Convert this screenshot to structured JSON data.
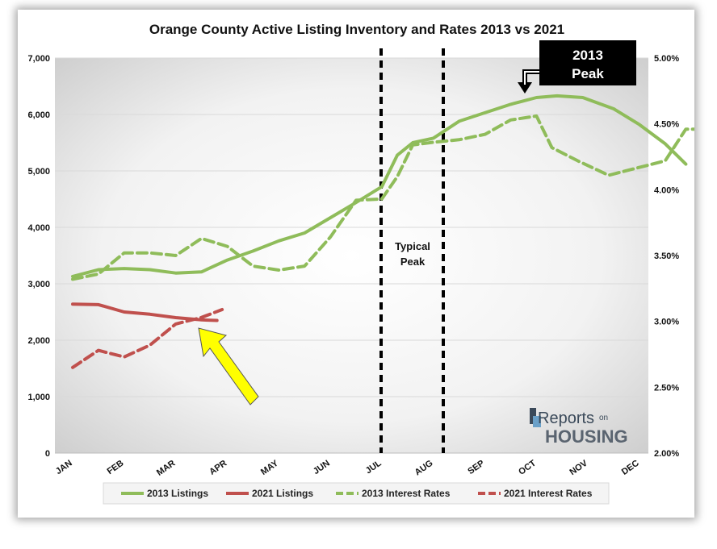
{
  "chart_data": {
    "type": "line",
    "title": "Orange County Active Listing Inventory and Rates 2013 vs 2021",
    "x_labels": [
      "JAN",
      "FEB",
      "MAR",
      "APR",
      "MAY",
      "JUN",
      "JUL",
      "AUG",
      "SEP",
      "OCT",
      "NOV",
      "DEC"
    ],
    "y_left": {
      "min": 0,
      "max": 7000,
      "ticks": [
        "0",
        "1,000",
        "2,000",
        "3,000",
        "4,000",
        "5,000",
        "6,000",
        "7,000"
      ]
    },
    "y_right": {
      "min": 2.0,
      "max": 5.0,
      "ticks": [
        "2.00%",
        "2.50%",
        "3.00%",
        "3.50%",
        "4.00%",
        "4.50%",
        "5.00%"
      ]
    },
    "series": [
      {
        "name": "2013 Listings",
        "axis": "left",
        "style": "solid",
        "color": "#8fbc5a",
        "points": [
          [
            0,
            3130
          ],
          [
            0.5,
            3250
          ],
          [
            1,
            3270
          ],
          [
            1.5,
            3250
          ],
          [
            2,
            3190
          ],
          [
            2.5,
            3210
          ],
          [
            3,
            3420
          ],
          [
            3.5,
            3580
          ],
          [
            4,
            3760
          ],
          [
            4.5,
            3900
          ],
          [
            5,
            4170
          ],
          [
            5.5,
            4440
          ],
          [
            6,
            4720
          ],
          [
            6.3,
            5280
          ],
          [
            6.6,
            5500
          ],
          [
            7,
            5580
          ],
          [
            7.5,
            5880
          ],
          [
            8,
            6030
          ],
          [
            8.5,
            6180
          ],
          [
            9,
            6300
          ],
          [
            9.4,
            6330
          ],
          [
            9.9,
            6300
          ],
          [
            10.5,
            6100
          ],
          [
            11,
            5820
          ],
          [
            11.5,
            5480
          ],
          [
            11.9,
            5120
          ]
        ]
      },
      {
        "name": "2021 Listings",
        "axis": "left",
        "style": "solid",
        "color": "#c0504d",
        "points": [
          [
            0,
            2640
          ],
          [
            0.5,
            2630
          ],
          [
            1,
            2500
          ],
          [
            1.5,
            2460
          ],
          [
            2,
            2400
          ],
          [
            2.5,
            2360
          ],
          [
            2.8,
            2350
          ]
        ]
      },
      {
        "name": "2013 Interest Rates",
        "axis": "right",
        "style": "dashed",
        "color": "#8fbc5a",
        "points": [
          [
            0,
            3.32
          ],
          [
            0.5,
            3.36
          ],
          [
            1,
            3.52
          ],
          [
            1.5,
            3.52
          ],
          [
            2,
            3.5
          ],
          [
            2.5,
            3.63
          ],
          [
            3,
            3.57
          ],
          [
            3.5,
            3.42
          ],
          [
            4,
            3.39
          ],
          [
            4.5,
            3.42
          ],
          [
            5,
            3.64
          ],
          [
            5.5,
            3.92
          ],
          [
            6,
            3.93
          ],
          [
            6.3,
            4.1
          ],
          [
            6.6,
            4.34
          ],
          [
            7,
            4.36
          ],
          [
            7.5,
            4.38
          ],
          [
            8,
            4.42
          ],
          [
            8.5,
            4.53
          ],
          [
            9,
            4.56
          ],
          [
            9.3,
            4.32
          ],
          [
            9.8,
            4.22
          ],
          [
            10.4,
            4.11
          ],
          [
            11,
            4.17
          ],
          [
            11.5,
            4.22
          ],
          [
            11.9,
            4.46
          ],
          [
            12.3,
            4.46
          ]
        ]
      },
      {
        "name": "2021 Interest Rates",
        "axis": "right",
        "style": "dashed",
        "color": "#c0504d",
        "points": [
          [
            0,
            2.65
          ],
          [
            0.5,
            2.78
          ],
          [
            1,
            2.73
          ],
          [
            1.5,
            2.82
          ],
          [
            2,
            2.98
          ],
          [
            2.5,
            3.03
          ],
          [
            2.9,
            3.09
          ]
        ]
      }
    ],
    "annotations": {
      "typical_peak_line1": "Typical",
      "typical_peak_line2": "Peak",
      "peak_label_line1": "2013",
      "peak_label_line2": "Peak"
    },
    "legend_placement": "bottom",
    "gridlines": true
  },
  "logo": {
    "line1": "Reports",
    "line1b": "on",
    "line2": "HOUSING"
  },
  "colors": {
    "green": "#8fbc5a",
    "red": "#c0504d",
    "arrow": "#ffff00",
    "peak_box": "#000000"
  }
}
